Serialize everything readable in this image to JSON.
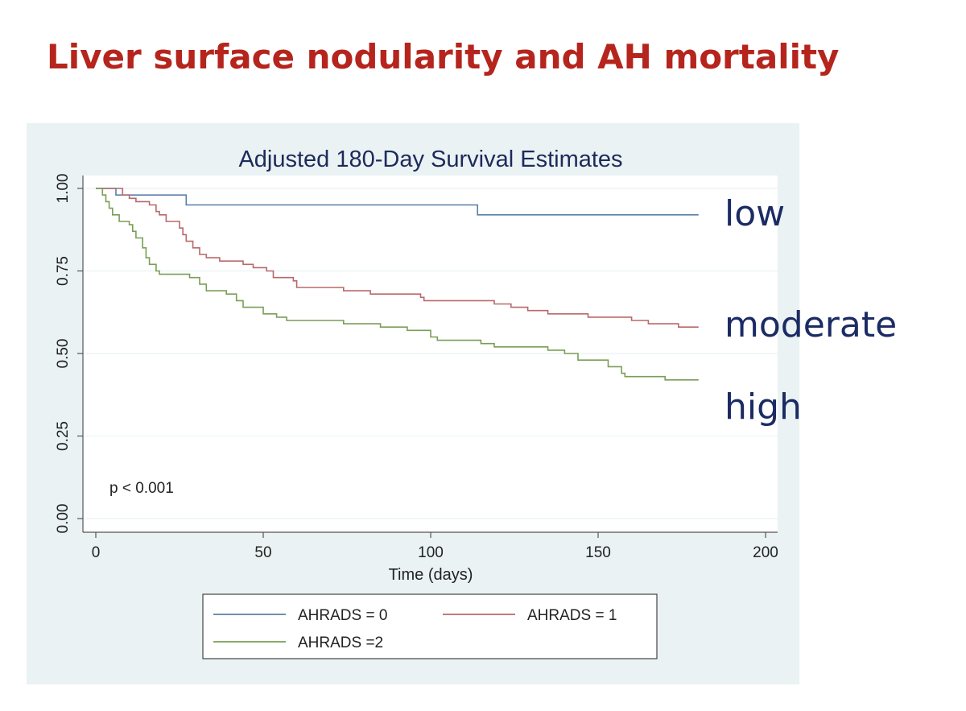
{
  "slide": {
    "title": "Liver surface nodularity and AH mortality",
    "side_labels": {
      "low": "low",
      "moderate": "moderate",
      "high": "high"
    }
  },
  "chart_data": {
    "type": "line",
    "title": "Adjusted 180-Day Survival Estimates",
    "xlabel": "Time (days)",
    "ylabel": "",
    "xlim": [
      0,
      200
    ],
    "ylim": [
      0,
      1
    ],
    "xticks": [
      "0",
      "50",
      "100",
      "150",
      "200"
    ],
    "yticks": [
      "0.00",
      "0.25",
      "0.50",
      "0.75",
      "1.00"
    ],
    "annotation": "p < 0.001",
    "legend_position": "bottom",
    "grid": true,
    "series": [
      {
        "name": "AHRADS = 0",
        "color": "#5b7ea6",
        "points": [
          [
            0,
            1.0
          ],
          [
            6,
            1.0
          ],
          [
            6,
            0.98
          ],
          [
            27,
            0.98
          ],
          [
            27,
            0.95
          ],
          [
            114,
            0.95
          ],
          [
            114,
            0.92
          ],
          [
            180,
            0.92
          ]
        ]
      },
      {
        "name": "AHRADS = 1",
        "color": "#b8686b",
        "points": [
          [
            0,
            1.0
          ],
          [
            8,
            1.0
          ],
          [
            8,
            0.98
          ],
          [
            10,
            0.98
          ],
          [
            10,
            0.97
          ],
          [
            12,
            0.97
          ],
          [
            12,
            0.96
          ],
          [
            16,
            0.96
          ],
          [
            16,
            0.95
          ],
          [
            18,
            0.95
          ],
          [
            18,
            0.93
          ],
          [
            19,
            0.93
          ],
          [
            19,
            0.92
          ],
          [
            21,
            0.92
          ],
          [
            21,
            0.9
          ],
          [
            25,
            0.9
          ],
          [
            25,
            0.88
          ],
          [
            26,
            0.88
          ],
          [
            26,
            0.86
          ],
          [
            27,
            0.86
          ],
          [
            27,
            0.84
          ],
          [
            29,
            0.84
          ],
          [
            29,
            0.82
          ],
          [
            31,
            0.82
          ],
          [
            31,
            0.8
          ],
          [
            33,
            0.8
          ],
          [
            33,
            0.79
          ],
          [
            37,
            0.79
          ],
          [
            37,
            0.78
          ],
          [
            44,
            0.78
          ],
          [
            44,
            0.77
          ],
          [
            47,
            0.77
          ],
          [
            47,
            0.76
          ],
          [
            51,
            0.76
          ],
          [
            51,
            0.75
          ],
          [
            53,
            0.75
          ],
          [
            53,
            0.73
          ],
          [
            59,
            0.73
          ],
          [
            59,
            0.72
          ],
          [
            60,
            0.72
          ],
          [
            60,
            0.7
          ],
          [
            74,
            0.7
          ],
          [
            74,
            0.69
          ],
          [
            82,
            0.69
          ],
          [
            82,
            0.68
          ],
          [
            97,
            0.68
          ],
          [
            97,
            0.67
          ],
          [
            98,
            0.67
          ],
          [
            98,
            0.66
          ],
          [
            119,
            0.66
          ],
          [
            119,
            0.65
          ],
          [
            124,
            0.65
          ],
          [
            124,
            0.64
          ],
          [
            129,
            0.64
          ],
          [
            129,
            0.63
          ],
          [
            135,
            0.63
          ],
          [
            135,
            0.62
          ],
          [
            147,
            0.62
          ],
          [
            147,
            0.61
          ],
          [
            160,
            0.61
          ],
          [
            160,
            0.6
          ],
          [
            165,
            0.6
          ],
          [
            165,
            0.59
          ],
          [
            174,
            0.59
          ],
          [
            174,
            0.58
          ],
          [
            180,
            0.58
          ]
        ]
      },
      {
        "name": "AHRADS =2",
        "color": "#7a9e55",
        "points": [
          [
            0,
            1.0
          ],
          [
            2,
            1.0
          ],
          [
            2,
            0.98
          ],
          [
            3,
            0.98
          ],
          [
            3,
            0.96
          ],
          [
            4,
            0.96
          ],
          [
            4,
            0.94
          ],
          [
            5,
            0.94
          ],
          [
            5,
            0.92
          ],
          [
            7,
            0.92
          ],
          [
            7,
            0.9
          ],
          [
            10,
            0.9
          ],
          [
            10,
            0.89
          ],
          [
            11,
            0.89
          ],
          [
            11,
            0.87
          ],
          [
            12,
            0.87
          ],
          [
            12,
            0.85
          ],
          [
            14,
            0.85
          ],
          [
            14,
            0.82
          ],
          [
            15,
            0.82
          ],
          [
            15,
            0.79
          ],
          [
            16,
            0.79
          ],
          [
            16,
            0.77
          ],
          [
            18,
            0.77
          ],
          [
            18,
            0.75
          ],
          [
            19,
            0.75
          ],
          [
            19,
            0.74
          ],
          [
            28,
            0.74
          ],
          [
            28,
            0.73
          ],
          [
            31,
            0.73
          ],
          [
            31,
            0.71
          ],
          [
            33,
            0.71
          ],
          [
            33,
            0.69
          ],
          [
            39,
            0.69
          ],
          [
            39,
            0.68
          ],
          [
            42,
            0.68
          ],
          [
            42,
            0.66
          ],
          [
            44,
            0.66
          ],
          [
            44,
            0.64
          ],
          [
            50,
            0.64
          ],
          [
            50,
            0.62
          ],
          [
            54,
            0.62
          ],
          [
            54,
            0.61
          ],
          [
            57,
            0.61
          ],
          [
            57,
            0.6
          ],
          [
            74,
            0.6
          ],
          [
            74,
            0.59
          ],
          [
            85,
            0.59
          ],
          [
            85,
            0.58
          ],
          [
            93,
            0.58
          ],
          [
            93,
            0.57
          ],
          [
            100,
            0.57
          ],
          [
            100,
            0.55
          ],
          [
            102,
            0.55
          ],
          [
            102,
            0.54
          ],
          [
            115,
            0.54
          ],
          [
            115,
            0.53
          ],
          [
            119,
            0.53
          ],
          [
            119,
            0.52
          ],
          [
            135,
            0.52
          ],
          [
            135,
            0.51
          ],
          [
            140,
            0.51
          ],
          [
            140,
            0.5
          ],
          [
            144,
            0.5
          ],
          [
            144,
            0.48
          ],
          [
            153,
            0.48
          ],
          [
            153,
            0.46
          ],
          [
            157,
            0.46
          ],
          [
            157,
            0.44
          ],
          [
            158,
            0.44
          ],
          [
            158,
            0.43
          ],
          [
            170,
            0.43
          ],
          [
            170,
            0.42
          ],
          [
            180,
            0.42
          ]
        ]
      }
    ]
  }
}
